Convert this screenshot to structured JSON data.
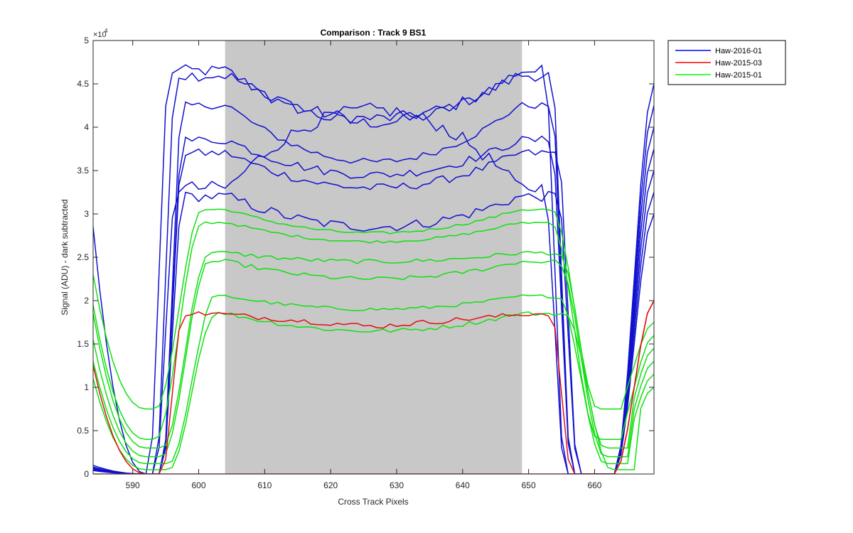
{
  "chart_data": {
    "type": "line",
    "title": "Comparison : Track 9  BS1",
    "xlabel": "Cross Track Pixels",
    "ylabel": "Signal (ADU) - dark subtracted",
    "y_exponent_label": "×10",
    "y_exponent_power": "4",
    "xlim": [
      584,
      669
    ],
    "ylim": [
      0,
      50000
    ],
    "x_ticks": [
      590,
      600,
      610,
      620,
      630,
      640,
      650,
      660
    ],
    "x_tick_labels": [
      "590",
      "600",
      "610",
      "620",
      "630",
      "640",
      "650",
      "660"
    ],
    "y_ticks": [
      0,
      5000,
      10000,
      15000,
      20000,
      25000,
      30000,
      35000,
      40000,
      45000,
      50000
    ],
    "y_tick_labels": [
      "0",
      "0.5",
      "1",
      "1.5",
      "2",
      "2.5",
      "3",
      "3.5",
      "4",
      "4.5",
      "5"
    ],
    "shaded_region": {
      "x": [
        604,
        649
      ],
      "color": "#c8c8c8"
    },
    "legend": {
      "placement": "outside-top-right",
      "entries": [
        {
          "label": "Haw-2016-01",
          "color": "#0000ff"
        },
        {
          "label": "Haw-2015-03",
          "color": "#ff0000"
        },
        {
          "label": "Haw-2015-01",
          "color": "#00ff00"
        }
      ]
    },
    "series_colors": {
      "blue": "#1010d0",
      "red": "#e01010",
      "green": "#10e010"
    },
    "series": [
      {
        "color": "blue",
        "plateau": 46500,
        "center": 40500,
        "shape": "dip",
        "rise": 594,
        "fall": 654,
        "noise": 700,
        "pre": [
          28500,
          0
        ]
      },
      {
        "color": "blue",
        "plateau": 46000,
        "center": 41000,
        "shape": "dip",
        "rise": 595,
        "fall": 655,
        "noise": 700,
        "pre": [
          1000,
          0
        ]
      },
      {
        "color": "blue",
        "plateau": 42500,
        "center": 36000,
        "shape": "dip",
        "rise": 596,
        "fall": 655,
        "noise": 400,
        "pre": [
          800,
          0
        ]
      },
      {
        "color": "blue",
        "plateau": 37000,
        "center": 33000,
        "shape": "dip",
        "rise": 596,
        "fall": 656,
        "noise": 500,
        "pre": [
          700,
          0
        ]
      },
      {
        "color": "blue",
        "plateau": 32000,
        "center": 28500,
        "shape": "dip",
        "rise": 596,
        "fall": 656,
        "noise": 600,
        "pre": [
          600,
          0
        ]
      },
      {
        "color": "blue",
        "plateau": 33000,
        "center": 42000,
        "shape": "bump",
        "rise": 595,
        "fall": 654,
        "noise": 800,
        "pre": [
          500,
          0
        ]
      },
      {
        "color": "blue",
        "plateau": 38500,
        "center": 34500,
        "shape": "dip",
        "rise": 596,
        "fall": 655,
        "noise": 500,
        "pre": [
          400,
          0
        ]
      },
      {
        "color": "green",
        "plateau": 30500,
        "center": 27800,
        "shape": "dip",
        "rise": 597,
        "fall": 657,
        "noise": 150,
        "pre": [
          23000,
          7500
        ],
        "min": 7500
      },
      {
        "color": "green",
        "plateau": 29000,
        "center": 26800,
        "shape": "dip",
        "rise": 597,
        "fall": 657,
        "noise": 150,
        "pre": [
          19500,
          4500
        ],
        "min": 4000
      },
      {
        "color": "green",
        "plateau": 25500,
        "center": 24500,
        "shape": "dip",
        "rise": 598,
        "fall": 658,
        "noise": 250,
        "pre": [
          18500,
          3500
        ],
        "min": 3000
      },
      {
        "color": "green",
        "plateau": 24500,
        "center": 22500,
        "shape": "dip",
        "rise": 598,
        "fall": 658,
        "noise": 250,
        "pre": [
          15500,
          2500
        ],
        "min": 2000
      },
      {
        "color": "green",
        "plateau": 20500,
        "center": 19000,
        "shape": "dip",
        "rise": 599,
        "fall": 658,
        "noise": 200,
        "pre": [
          13000,
          1500
        ],
        "min": 1200
      },
      {
        "color": "green",
        "plateau": 18500,
        "center": 16500,
        "shape": "dip",
        "rise": 599,
        "fall": 659,
        "noise": 250,
        "pre": [
          11000,
          800
        ],
        "min": 500
      },
      {
        "color": "red",
        "plateau": 18500,
        "center": 17000,
        "shape": "flatdip",
        "rise": 596,
        "fall": 655,
        "noise": 300,
        "pre": [
          12500,
          0
        ]
      },
      {
        "color": "red",
        "plateau": 0,
        "center": 0,
        "shape": "flat",
        "rise": 596,
        "fall": 655,
        "noise": 0,
        "pre": [
          0,
          0
        ]
      }
    ]
  },
  "legend": {
    "entry_1": "Haw-2016-01",
    "entry_2": "Haw-2015-03",
    "entry_3": "Haw-2015-01"
  }
}
